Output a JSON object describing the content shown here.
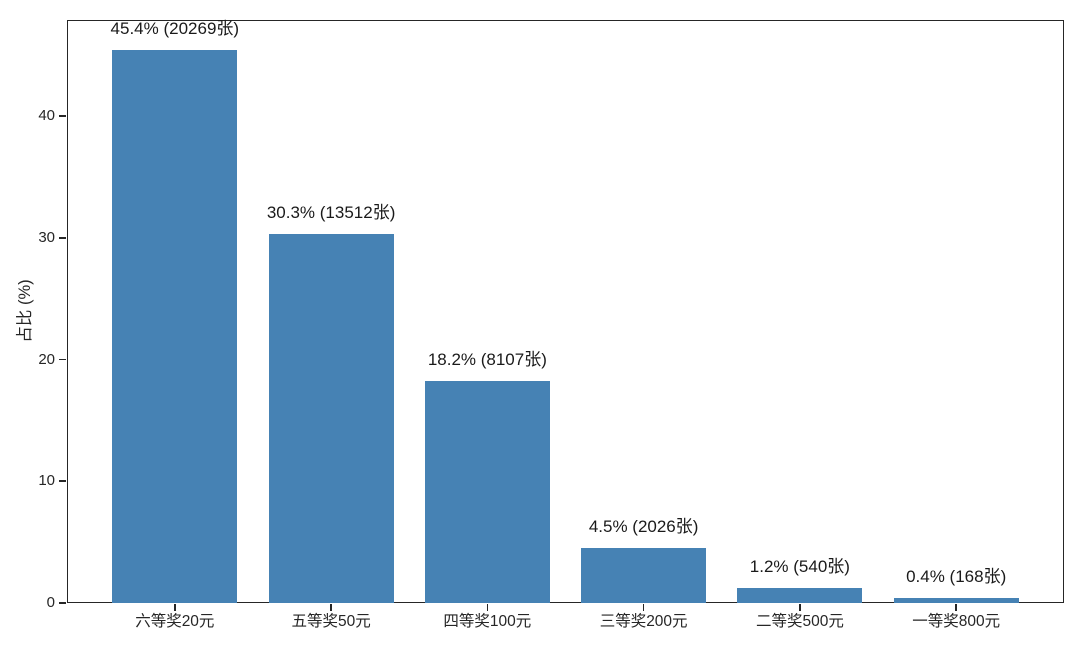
{
  "chart_data": {
    "type": "bar",
    "title": "",
    "xlabel": "",
    "ylabel": "占比 (%)",
    "categories": [
      "六等奖20元",
      "五等奖50元",
      "四等奖100元",
      "三等奖200元",
      "二等奖500元",
      "一等奖800元"
    ],
    "values": [
      45.4,
      30.3,
      18.2,
      4.5,
      1.2,
      0.4
    ],
    "counts": [
      20269,
      13512,
      8107,
      2026,
      540,
      168
    ],
    "bar_labels": [
      "45.4% (20269张)",
      "30.3% (13512张)",
      "18.2% (8107张)",
      "4.5% (2026张)",
      "1.2% (540张)",
      "0.4% (168张)"
    ],
    "yticks": [
      0,
      10,
      20,
      30,
      40
    ],
    "ylim": [
      0,
      47.9
    ],
    "xlim": [
      -0.69,
      5.69
    ],
    "bar_width_units": 0.8,
    "grid": false,
    "legend": null,
    "bar_color": "#4682B4",
    "axis_color": "#262626",
    "text_color": "#1a1a1a",
    "background_color": "#ffffff"
  }
}
